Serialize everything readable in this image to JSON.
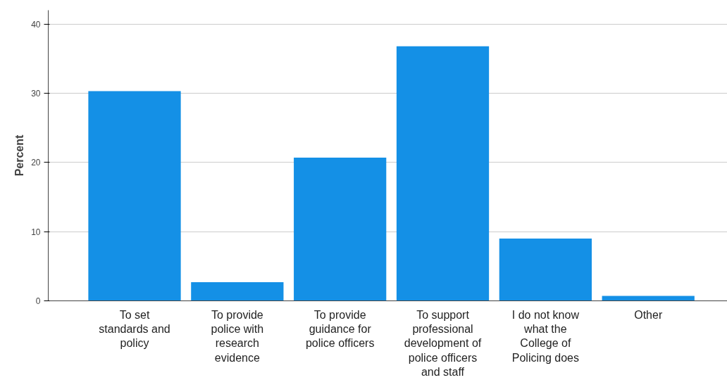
{
  "chart_data": {
    "type": "bar",
    "ylabel": "Percent",
    "categories": [
      "To set standards and policy",
      "To provide police with research evidence",
      "To provide guidance for police officers",
      "To support professional development of police officers and staff",
      "I do not know what the College of Policing does",
      "Other"
    ],
    "values": [
      30.3,
      2.7,
      20.7,
      36.8,
      9.0,
      0.7
    ],
    "color": "#1490e6",
    "ylim": [
      0,
      42
    ],
    "yticks": [
      0,
      10,
      20,
      30,
      40
    ],
    "grid": "y"
  }
}
